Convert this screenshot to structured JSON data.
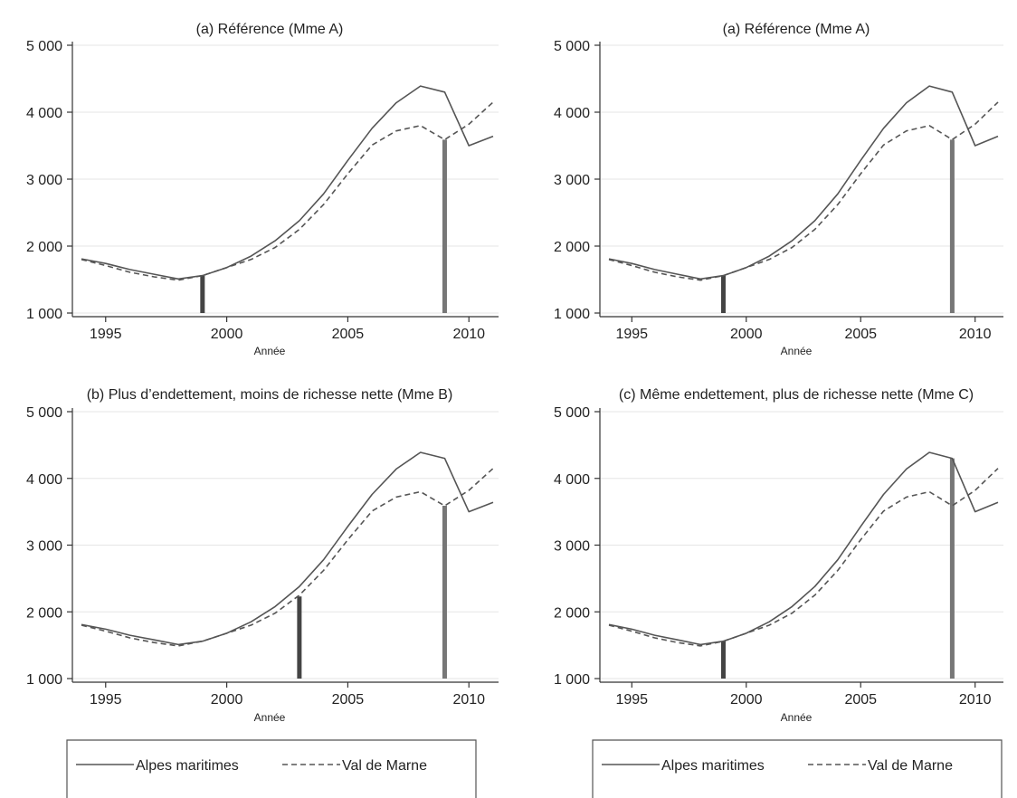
{
  "chart_data": [
    {
      "type": "line",
      "title": "(a) Référence (Mme A)",
      "xlabel": "Année",
      "ylabel": "",
      "xlim": [
        1994,
        2011
      ],
      "ylim": [
        1000,
        5000
      ],
      "x_ticks": [
        1995,
        2000,
        2005,
        2010
      ],
      "x_tick_labels": [
        "1995",
        "2000",
        "2005",
        "2010"
      ],
      "y_ticks": [
        1000,
        2000,
        3000,
        4000,
        5000
      ],
      "y_tick_labels": [
        "1 000",
        "2 000",
        "3 000",
        "4 000",
        "5 000"
      ],
      "grid": "horizontal",
      "x": [
        1994,
        1995,
        1996,
        1997,
        1998,
        1999,
        2000,
        2001,
        2002,
        2003,
        2004,
        2005,
        2006,
        2007,
        2008,
        2009,
        2010,
        2011
      ],
      "series": [
        {
          "name": "Alpes maritimes",
          "style": "solid",
          "color": "#555555",
          "values": [
            1810,
            1740,
            1650,
            1580,
            1510,
            1560,
            1680,
            1850,
            2080,
            2380,
            2780,
            3280,
            3760,
            4140,
            4390,
            4300,
            3500,
            3640
          ]
        },
        {
          "name": "Val de Marne",
          "style": "dashed",
          "color": "#555555",
          "values": [
            1800,
            1710,
            1610,
            1540,
            1490,
            1560,
            1680,
            1800,
            1980,
            2250,
            2620,
            3080,
            3510,
            3720,
            3800,
            3590,
            3820,
            4150
          ]
        }
      ],
      "markers": [
        {
          "x": 1999,
          "from": 1000,
          "to": 1560,
          "color": "#444444"
        },
        {
          "x": 2009,
          "from": 1000,
          "to": 3590,
          "color": "#777777"
        }
      ]
    },
    {
      "type": "line",
      "title": "(a) Référence (Mme A)",
      "xlabel": "Année",
      "ylabel": "",
      "xlim": [
        1994,
        2011
      ],
      "ylim": [
        1000,
        5000
      ],
      "x_ticks": [
        1995,
        2000,
        2005,
        2010
      ],
      "x_tick_labels": [
        "1995",
        "2000",
        "2005",
        "2010"
      ],
      "y_ticks": [
        1000,
        2000,
        3000,
        4000,
        5000
      ],
      "y_tick_labels": [
        "1 000",
        "2 000",
        "3 000",
        "4 000",
        "5 000"
      ],
      "grid": "horizontal",
      "x": [
        1994,
        1995,
        1996,
        1997,
        1998,
        1999,
        2000,
        2001,
        2002,
        2003,
        2004,
        2005,
        2006,
        2007,
        2008,
        2009,
        2010,
        2011
      ],
      "series": [
        {
          "name": "Alpes maritimes",
          "style": "solid",
          "color": "#555555",
          "values": [
            1810,
            1740,
            1650,
            1580,
            1510,
            1560,
            1680,
            1850,
            2080,
            2380,
            2780,
            3280,
            3760,
            4140,
            4390,
            4300,
            3500,
            3640
          ]
        },
        {
          "name": "Val de Marne",
          "style": "dashed",
          "color": "#555555",
          "values": [
            1800,
            1710,
            1610,
            1540,
            1490,
            1560,
            1680,
            1800,
            1980,
            2250,
            2620,
            3080,
            3510,
            3720,
            3800,
            3590,
            3820,
            4150
          ]
        }
      ],
      "markers": [
        {
          "x": 1999,
          "from": 1000,
          "to": 1560,
          "color": "#444444"
        },
        {
          "x": 2009,
          "from": 1000,
          "to": 3590,
          "color": "#777777"
        }
      ]
    },
    {
      "type": "line",
      "title": "(b) Plus d’endettement, moins de richesse nette (Mme B)",
      "xlabel": "Année",
      "ylabel": "",
      "xlim": [
        1994,
        2011
      ],
      "ylim": [
        1000,
        5000
      ],
      "x_ticks": [
        1995,
        2000,
        2005,
        2010
      ],
      "x_tick_labels": [
        "1995",
        "2000",
        "2005",
        "2010"
      ],
      "y_ticks": [
        1000,
        2000,
        3000,
        4000,
        5000
      ],
      "y_tick_labels": [
        "1 000",
        "2 000",
        "3 000",
        "4 000",
        "5 000"
      ],
      "grid": "horizontal",
      "x": [
        1994,
        1995,
        1996,
        1997,
        1998,
        1999,
        2000,
        2001,
        2002,
        2003,
        2004,
        2005,
        2006,
        2007,
        2008,
        2009,
        2010,
        2011
      ],
      "series": [
        {
          "name": "Alpes maritimes",
          "style": "solid",
          "color": "#555555",
          "values": [
            1810,
            1740,
            1650,
            1580,
            1510,
            1560,
            1680,
            1850,
            2080,
            2380,
            2780,
            3280,
            3760,
            4140,
            4390,
            4300,
            3500,
            3640
          ]
        },
        {
          "name": "Val de Marne",
          "style": "dashed",
          "color": "#555555",
          "values": [
            1800,
            1710,
            1610,
            1540,
            1490,
            1560,
            1680,
            1800,
            1980,
            2250,
            2620,
            3080,
            3510,
            3720,
            3800,
            3590,
            3820,
            4150
          ]
        }
      ],
      "markers": [
        {
          "x": 2003,
          "from": 1000,
          "to": 2230,
          "color": "#444444"
        },
        {
          "x": 2009,
          "from": 1000,
          "to": 3590,
          "color": "#777777"
        }
      ]
    },
    {
      "type": "line",
      "title": "(c) Même endettement, plus de richesse nette (Mme C)",
      "xlabel": "Année",
      "ylabel": "",
      "xlim": [
        1994,
        2011
      ],
      "ylim": [
        1000,
        5000
      ],
      "x_ticks": [
        1995,
        2000,
        2005,
        2010
      ],
      "x_tick_labels": [
        "1995",
        "2000",
        "2005",
        "2010"
      ],
      "y_ticks": [
        1000,
        2000,
        3000,
        4000,
        5000
      ],
      "y_tick_labels": [
        "1 000",
        "2 000",
        "3 000",
        "4 000",
        "5 000"
      ],
      "grid": "horizontal",
      "x": [
        1994,
        1995,
        1996,
        1997,
        1998,
        1999,
        2000,
        2001,
        2002,
        2003,
        2004,
        2005,
        2006,
        2007,
        2008,
        2009,
        2010,
        2011
      ],
      "series": [
        {
          "name": "Alpes maritimes",
          "style": "solid",
          "color": "#555555",
          "values": [
            1810,
            1740,
            1650,
            1580,
            1510,
            1560,
            1680,
            1850,
            2080,
            2380,
            2780,
            3280,
            3760,
            4140,
            4390,
            4300,
            3500,
            3640
          ]
        },
        {
          "name": "Val de Marne",
          "style": "dashed",
          "color": "#555555",
          "values": [
            1800,
            1710,
            1610,
            1540,
            1490,
            1560,
            1680,
            1800,
            1980,
            2250,
            2620,
            3080,
            3510,
            3720,
            3800,
            3590,
            3820,
            4150
          ]
        }
      ],
      "markers": [
        {
          "x": 1999,
          "from": 1000,
          "to": 1560,
          "color": "#444444"
        },
        {
          "x": 2009,
          "from": 1000,
          "to": 4300,
          "color": "#777777"
        }
      ]
    }
  ],
  "legends": [
    {
      "items": [
        {
          "label": "Alpes maritimes",
          "style": "solid"
        },
        {
          "label": "Val de Marne",
          "style": "dashed"
        }
      ]
    },
    {
      "items": [
        {
          "label": "Alpes maritimes",
          "style": "solid"
        },
        {
          "label": "Val de Marne",
          "style": "dashed"
        }
      ]
    }
  ],
  "colors": {
    "line": "#555555",
    "axis": "#333333",
    "grid": "#e6e6e6",
    "marker_dark": "#444444",
    "marker_light": "#777777",
    "legend_border": "#555555"
  }
}
